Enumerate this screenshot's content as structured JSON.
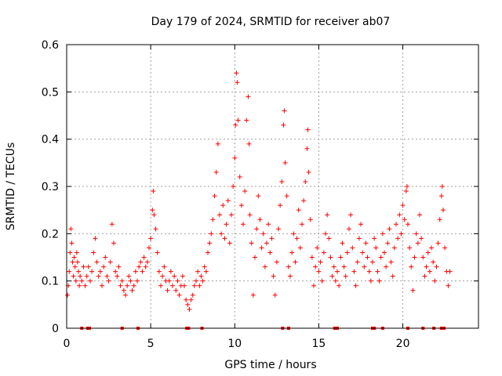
{
  "chart_data": {
    "type": "scatter",
    "title": "Day 179 of 2024, SRMTID for receiver ab07",
    "xlabel": "GPS time / hours",
    "ylabel": "SRMTID / TECUs",
    "xlim": [
      0,
      24.5
    ],
    "ylim": [
      0,
      0.6
    ],
    "x_ticks": [
      0,
      5,
      10,
      15,
      20
    ],
    "y_ticks": [
      0,
      0.1,
      0.2,
      0.3,
      0.4,
      0.5,
      0.6
    ],
    "x_tick_labels": [
      "0",
      "5",
      "10",
      "15",
      "20"
    ],
    "y_tick_labels": [
      "0",
      "0.1",
      "0.2",
      "0.3",
      "0.4",
      "0.5",
      "0.6"
    ],
    "grid": true,
    "marker": "plus",
    "color": "#ff0000",
    "series": [
      {
        "name": "SRMTID",
        "points": [
          [
            0.05,
            0.07
          ],
          [
            0.1,
            0.09
          ],
          [
            0.15,
            0.12
          ],
          [
            0.2,
            0.16
          ],
          [
            0.25,
            0.21
          ],
          [
            0.3,
            0.18
          ],
          [
            0.35,
            0.14
          ],
          [
            0.4,
            0.11
          ],
          [
            0.45,
            0.15
          ],
          [
            0.5,
            0.13
          ],
          [
            0.55,
            0.1
          ],
          [
            0.6,
            0.16
          ],
          [
            0.65,
            0.14
          ],
          [
            0.7,
            0.12
          ],
          [
            0.75,
            0.09
          ],
          [
            0.8,
            0.11
          ],
          [
            0.9,
            0.1
          ],
          [
            1.0,
            0.13
          ],
          [
            1.1,
            0.09
          ],
          [
            1.2,
            0.11
          ],
          [
            1.3,
            0.13
          ],
          [
            1.4,
            0.1
          ],
          [
            1.5,
            0.12
          ],
          [
            1.6,
            0.16
          ],
          [
            1.7,
            0.19
          ],
          [
            1.8,
            0.14
          ],
          [
            1.9,
            0.11
          ],
          [
            2.0,
            0.12
          ],
          [
            2.1,
            0.09
          ],
          [
            2.2,
            0.13
          ],
          [
            2.3,
            0.15
          ],
          [
            2.4,
            0.11
          ],
          [
            2.5,
            0.1
          ],
          [
            2.6,
            0.14
          ],
          [
            2.7,
            0.22
          ],
          [
            2.8,
            0.18
          ],
          [
            2.9,
            0.12
          ],
          [
            3.0,
            0.11
          ],
          [
            3.1,
            0.13
          ],
          [
            3.2,
            0.09
          ],
          [
            3.3,
            0.1
          ],
          [
            3.4,
            0.08
          ],
          [
            3.5,
            0.07
          ],
          [
            3.6,
            0.09
          ],
          [
            3.7,
            0.11
          ],
          [
            3.8,
            0.1
          ],
          [
            3.9,
            0.08
          ],
          [
            4.0,
            0.09
          ],
          [
            4.1,
            0.12
          ],
          [
            4.2,
            0.1
          ],
          [
            4.3,
            0.13
          ],
          [
            4.4,
            0.14
          ],
          [
            4.5,
            0.12
          ],
          [
            4.6,
            0.15
          ],
          [
            4.7,
            0.13
          ],
          [
            4.8,
            0.14
          ],
          [
            4.9,
            0.17
          ],
          [
            5.0,
            0.19
          ],
          [
            5.1,
            0.25
          ],
          [
            5.15,
            0.29
          ],
          [
            5.2,
            0.24
          ],
          [
            5.3,
            0.21
          ],
          [
            5.4,
            0.16
          ],
          [
            5.5,
            0.12
          ],
          [
            5.6,
            0.09
          ],
          [
            5.7,
            0.11
          ],
          [
            5.8,
            0.13
          ],
          [
            5.9,
            0.1
          ],
          [
            6.0,
            0.08
          ],
          [
            6.1,
            0.1
          ],
          [
            6.2,
            0.12
          ],
          [
            6.3,
            0.09
          ],
          [
            6.4,
            0.11
          ],
          [
            6.5,
            0.08
          ],
          [
            6.6,
            0.1
          ],
          [
            6.7,
            0.07
          ],
          [
            6.8,
            0.09
          ],
          [
            6.9,
            0.11
          ],
          [
            7.0,
            0.09
          ],
          [
            7.1,
            0.06
          ],
          [
            7.2,
            0.05
          ],
          [
            7.3,
            0.04
          ],
          [
            7.4,
            0.06
          ],
          [
            7.5,
            0.07
          ],
          [
            7.6,
            0.09
          ],
          [
            7.7,
            0.1
          ],
          [
            7.8,
            0.12
          ],
          [
            7.9,
            0.09
          ],
          [
            8.0,
            0.11
          ],
          [
            8.1,
            0.1
          ],
          [
            8.2,
            0.13
          ],
          [
            8.3,
            0.12
          ],
          [
            8.4,
            0.16
          ],
          [
            8.5,
            0.18
          ],
          [
            8.6,
            0.2
          ],
          [
            8.7,
            0.23
          ],
          [
            8.8,
            0.28
          ],
          [
            8.9,
            0.33
          ],
          [
            9.0,
            0.39
          ],
          [
            9.1,
            0.24
          ],
          [
            9.2,
            0.2
          ],
          [
            9.3,
            0.26
          ],
          [
            9.4,
            0.19
          ],
          [
            9.5,
            0.22
          ],
          [
            9.6,
            0.27
          ],
          [
            9.7,
            0.18
          ],
          [
            9.8,
            0.24
          ],
          [
            9.9,
            0.3
          ],
          [
            10.0,
            0.36
          ],
          [
            10.05,
            0.43
          ],
          [
            10.1,
            0.54
          ],
          [
            10.15,
            0.52
          ],
          [
            10.2,
            0.44
          ],
          [
            10.3,
            0.32
          ],
          [
            10.4,
            0.26
          ],
          [
            10.5,
            0.22
          ],
          [
            10.6,
            0.29
          ],
          [
            10.7,
            0.44
          ],
          [
            10.8,
            0.49
          ],
          [
            10.85,
            0.39
          ],
          [
            10.9,
            0.24
          ],
          [
            11.0,
            0.18
          ],
          [
            11.1,
            0.07
          ],
          [
            11.2,
            0.15
          ],
          [
            11.3,
            0.21
          ],
          [
            11.4,
            0.28
          ],
          [
            11.5,
            0.23
          ],
          [
            11.6,
            0.17
          ],
          [
            11.7,
            0.2
          ],
          [
            11.8,
            0.13
          ],
          [
            11.9,
            0.18
          ],
          [
            12.0,
            0.22
          ],
          [
            12.1,
            0.16
          ],
          [
            12.2,
            0.19
          ],
          [
            12.3,
            0.11
          ],
          [
            12.4,
            0.07
          ],
          [
            12.5,
            0.14
          ],
          [
            12.6,
            0.21
          ],
          [
            12.7,
            0.26
          ],
          [
            12.8,
            0.31
          ],
          [
            12.9,
            0.43
          ],
          [
            12.95,
            0.46
          ],
          [
            13.0,
            0.35
          ],
          [
            13.1,
            0.28
          ],
          [
            13.2,
            0.13
          ],
          [
            13.3,
            0.11
          ],
          [
            13.4,
            0.16
          ],
          [
            13.5,
            0.2
          ],
          [
            13.6,
            0.14
          ],
          [
            13.7,
            0.19
          ],
          [
            13.8,
            0.25
          ],
          [
            13.9,
            0.17
          ],
          [
            14.0,
            0.22
          ],
          [
            14.1,
            0.27
          ],
          [
            14.2,
            0.31
          ],
          [
            14.3,
            0.38
          ],
          [
            14.35,
            0.42
          ],
          [
            14.4,
            0.33
          ],
          [
            14.5,
            0.23
          ],
          [
            14.6,
            0.15
          ],
          [
            14.7,
            0.09
          ],
          [
            14.8,
            0.13
          ],
          [
            14.9,
            0.17
          ],
          [
            15.0,
            0.12
          ],
          [
            15.1,
            0.14
          ],
          [
            15.2,
            0.1
          ],
          [
            15.3,
            0.16
          ],
          [
            15.4,
            0.2
          ],
          [
            15.5,
            0.24
          ],
          [
            15.6,
            0.19
          ],
          [
            15.7,
            0.15
          ],
          [
            15.8,
            0.11
          ],
          [
            15.9,
            0.13
          ],
          [
            16.0,
            0.1
          ],
          [
            16.1,
            0.12
          ],
          [
            16.2,
            0.09
          ],
          [
            16.3,
            0.15
          ],
          [
            16.4,
            0.18
          ],
          [
            16.5,
            0.13
          ],
          [
            16.6,
            0.11
          ],
          [
            16.7,
            0.16
          ],
          [
            16.8,
            0.21
          ],
          [
            16.9,
            0.24
          ],
          [
            17.0,
            0.17
          ],
          [
            17.1,
            0.12
          ],
          [
            17.2,
            0.09
          ],
          [
            17.3,
            0.14
          ],
          [
            17.4,
            0.19
          ],
          [
            17.5,
            0.22
          ],
          [
            17.6,
            0.16
          ],
          [
            17.7,
            0.13
          ],
          [
            17.8,
            0.18
          ],
          [
            17.9,
            0.15
          ],
          [
            18.0,
            0.12
          ],
          [
            18.1,
            0.1
          ],
          [
            18.2,
            0.14
          ],
          [
            18.3,
            0.19
          ],
          [
            18.4,
            0.17
          ],
          [
            18.5,
            0.12
          ],
          [
            18.6,
            0.1
          ],
          [
            18.7,
            0.15
          ],
          [
            18.8,
            0.2
          ],
          [
            18.9,
            0.16
          ],
          [
            19.0,
            0.13
          ],
          [
            19.1,
            0.18
          ],
          [
            19.2,
            0.21
          ],
          [
            19.3,
            0.14
          ],
          [
            19.4,
            0.11
          ],
          [
            19.5,
            0.17
          ],
          [
            19.6,
            0.22
          ],
          [
            19.7,
            0.19
          ],
          [
            19.8,
            0.24
          ],
          [
            19.9,
            0.2
          ],
          [
            20.0,
            0.26
          ],
          [
            20.1,
            0.23
          ],
          [
            20.2,
            0.29
          ],
          [
            20.25,
            0.3
          ],
          [
            20.3,
            0.22
          ],
          [
            20.4,
            0.17
          ],
          [
            20.5,
            0.13
          ],
          [
            20.6,
            0.08
          ],
          [
            20.7,
            0.15
          ],
          [
            20.8,
            0.2
          ],
          [
            20.9,
            0.18
          ],
          [
            21.0,
            0.24
          ],
          [
            21.1,
            0.19
          ],
          [
            21.2,
            0.15
          ],
          [
            21.3,
            0.11
          ],
          [
            21.4,
            0.13
          ],
          [
            21.5,
            0.16
          ],
          [
            21.6,
            0.12
          ],
          [
            21.7,
            0.17
          ],
          [
            21.8,
            0.14
          ],
          [
            21.9,
            0.1
          ],
          [
            22.0,
            0.13
          ],
          [
            22.1,
            0.18
          ],
          [
            22.2,
            0.23
          ],
          [
            22.3,
            0.28
          ],
          [
            22.35,
            0.3
          ],
          [
            22.4,
            0.25
          ],
          [
            22.5,
            0.17
          ],
          [
            22.6,
            0.12
          ],
          [
            22.7,
            0.09
          ],
          [
            22.8,
            0.12
          ]
        ]
      }
    ],
    "gap_markers_y": 0,
    "gap_marker_x": [
      0.9,
      1.25,
      1.35,
      3.3,
      4.25,
      7.15,
      7.25,
      8.05,
      12.85,
      13.2,
      15.95,
      16.1,
      18.2,
      18.3,
      18.8,
      20.3,
      21.2,
      21.85,
      22.3,
      22.45
    ]
  }
}
